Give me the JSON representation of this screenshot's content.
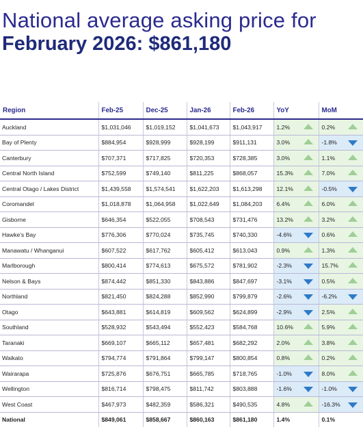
{
  "title": {
    "line1": "National average asking price for",
    "line2": "February 2026: $861,180"
  },
  "colors": {
    "title": "#2b2a8f",
    "up_bg": "#e8f5e3",
    "down_bg": "#dcebf8",
    "up_arrow": "#9fcf97",
    "down_arrow": "#2f7ac7"
  },
  "headers": [
    "Region",
    "Feb-25",
    "Dec-25",
    "Jan-26",
    "Feb-26",
    "YoY",
    "MoM"
  ],
  "rows": [
    {
      "region": "Auckland",
      "feb25": "$1,031,046",
      "dec25": "$1,019,152",
      "jan26": "$1,041,673",
      "feb26": "$1,043,917",
      "yoy": "1.2%",
      "yoy_dir": "up",
      "mom": "0.2%",
      "mom_dir": "up"
    },
    {
      "region": "Bay of Plenty",
      "feb25": "$884,954",
      "dec25": "$928,999",
      "jan26": "$928,199",
      "feb26": "$911,131",
      "yoy": "3.0%",
      "yoy_dir": "up",
      "mom": "-1.8%",
      "mom_dir": "down"
    },
    {
      "region": "Canterbury",
      "feb25": "$707,371",
      "dec25": "$717,825",
      "jan26": "$720,353",
      "feb26": "$728,385",
      "yoy": "3.0%",
      "yoy_dir": "up",
      "mom": "1.1%",
      "mom_dir": "up"
    },
    {
      "region": "Central North Island",
      "feb25": "$752,599",
      "dec25": "$749,140",
      "jan26": "$811,225",
      "feb26": "$868,057",
      "yoy": "15.3%",
      "yoy_dir": "up",
      "mom": "7.0%",
      "mom_dir": "up"
    },
    {
      "region": "Central Otago / Lakes District",
      "feb25": "$1,439,558",
      "dec25": "$1,574,541",
      "jan26": "$1,622,203",
      "feb26": "$1,613,298",
      "yoy": "12.1%",
      "yoy_dir": "up",
      "mom": "-0.5%",
      "mom_dir": "down"
    },
    {
      "region": "Coromandel",
      "feb25": "$1,018,878",
      "dec25": "$1,064,958",
      "jan26": "$1,022,649",
      "feb26": "$1,084,203",
      "yoy": "6.4%",
      "yoy_dir": "up",
      "mom": "6.0%",
      "mom_dir": "up"
    },
    {
      "region": "Gisborne",
      "feb25": "$646,354",
      "dec25": "$522,055",
      "jan26": "$708,543",
      "feb26": "$731,476",
      "yoy": "13.2%",
      "yoy_dir": "up",
      "mom": "3.2%",
      "mom_dir": "up"
    },
    {
      "region": "Hawke's Bay",
      "feb25": "$776,306",
      "dec25": "$770,024",
      "jan26": "$735,745",
      "feb26": "$740,330",
      "yoy": "-4.6%",
      "yoy_dir": "down",
      "mom": "0.6%",
      "mom_dir": "up"
    },
    {
      "region": "Manawatu / Whanganui",
      "feb25": "$607,522",
      "dec25": "$617,762",
      "jan26": "$605,412",
      "feb26": "$613,043",
      "yoy": "0.9%",
      "yoy_dir": "up",
      "mom": "1.3%",
      "mom_dir": "up"
    },
    {
      "region": "Marlborough",
      "feb25": "$800,414",
      "dec25": "$774,613",
      "jan26": "$675,572",
      "feb26": "$781,902",
      "yoy": "-2.3%",
      "yoy_dir": "down",
      "mom": "15.7%",
      "mom_dir": "up"
    },
    {
      "region": "Nelson & Bays",
      "feb25": "$874,442",
      "dec25": "$851,330",
      "jan26": "$843,886",
      "feb26": "$847,697",
      "yoy": "-3.1%",
      "yoy_dir": "down",
      "mom": "0.5%",
      "mom_dir": "up"
    },
    {
      "region": "Northland",
      "feb25": "$821,450",
      "dec25": "$824,288",
      "jan26": "$852,990",
      "feb26": "$799,879",
      "yoy": "-2.6%",
      "yoy_dir": "down",
      "mom": "-6.2%",
      "mom_dir": "down"
    },
    {
      "region": "Otago",
      "feb25": "$643,881",
      "dec25": "$614,819",
      "jan26": "$609,562",
      "feb26": "$624,899",
      "yoy": "-2.9%",
      "yoy_dir": "down",
      "mom": "2.5%",
      "mom_dir": "up"
    },
    {
      "region": "Southland",
      "feb25": "$528,932",
      "dec25": "$543,494",
      "jan26": "$552,423",
      "feb26": "$584,768",
      "yoy": "10.6%",
      "yoy_dir": "up",
      "mom": "5.9%",
      "mom_dir": "up"
    },
    {
      "region": "Taranaki",
      "feb25": "$669,107",
      "dec25": "$665,112",
      "jan26": "$657,481",
      "feb26": "$682,292",
      "yoy": "2.0%",
      "yoy_dir": "up",
      "mom": "3.8%",
      "mom_dir": "up"
    },
    {
      "region": "Waikato",
      "feb25": "$794,774",
      "dec25": "$791,864",
      "jan26": "$799,147",
      "feb26": "$800,854",
      "yoy": "0.8%",
      "yoy_dir": "up",
      "mom": "0.2%",
      "mom_dir": "up"
    },
    {
      "region": "Wairarapa",
      "feb25": "$725,876",
      "dec25": "$676,751",
      "jan26": "$665,785",
      "feb26": "$718,765",
      "yoy": "-1.0%",
      "yoy_dir": "down",
      "mom": "8.0%",
      "mom_dir": "up"
    },
    {
      "region": "Wellington",
      "feb25": "$816,714",
      "dec25": "$798,475",
      "jan26": "$811,742",
      "feb26": "$803,888",
      "yoy": "-1.6%",
      "yoy_dir": "down",
      "mom": "-1.0%",
      "mom_dir": "down"
    },
    {
      "region": "West Coast",
      "feb25": "$467,973",
      "dec25": "$482,359",
      "jan26": "$586,321",
      "feb26": "$490,535",
      "yoy": "4.8%",
      "yoy_dir": "up",
      "mom": "-16.3%",
      "mom_dir": "down"
    }
  ],
  "national": {
    "region": "National",
    "feb25": "$849,061",
    "dec25": "$858,667",
    "jan26": "$860,163",
    "feb26": "$861,180",
    "yoy": "1.4%",
    "yoy_dir": "up",
    "mom": "0.1%",
    "mom_dir": "up"
  }
}
